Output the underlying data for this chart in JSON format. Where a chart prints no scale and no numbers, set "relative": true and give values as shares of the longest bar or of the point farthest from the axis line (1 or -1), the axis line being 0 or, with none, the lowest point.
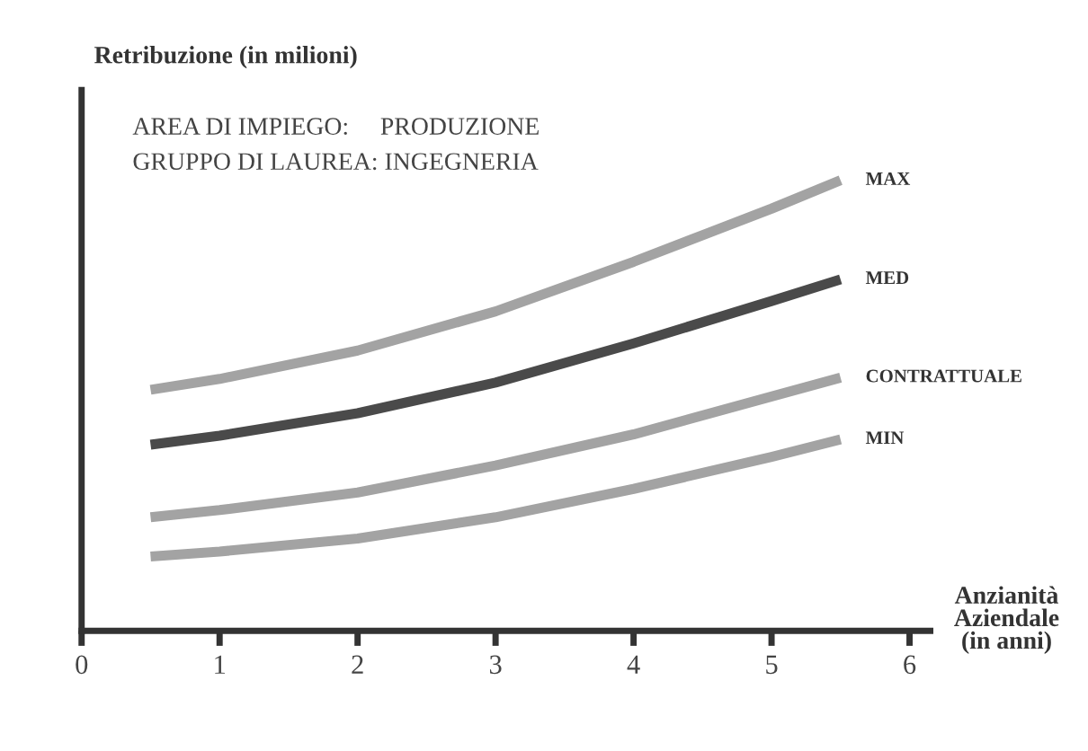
{
  "chart_data": {
    "type": "line",
    "relative": true,
    "ylabel": "Retribuzione (in milioni)",
    "xlabel": "Anzianità\nAziendale\n(in anni)",
    "annotations": [
      "AREA DI IMPIEGO:     PRODUZIONE",
      "GRUPPO DI LAUREA: INGEGNERIA"
    ],
    "x": [
      0.5,
      1,
      2,
      3,
      4,
      5,
      5.5
    ],
    "xlim": [
      0,
      6.15
    ],
    "xticks": [
      0,
      1,
      2,
      3,
      4,
      5,
      6
    ],
    "grid": false,
    "legend": false,
    "marker": "none",
    "line_style": "solid",
    "series": [
      {
        "name": "MAX",
        "color": "#a3a3a3",
        "values": [
          0.535,
          0.559,
          0.622,
          0.709,
          0.819,
          0.937,
          1
        ]
      },
      {
        "name": "MED",
        "color": "#4a4a4a",
        "values": [
          0.413,
          0.433,
          0.483,
          0.551,
          0.638,
          0.732,
          0.78
        ]
      },
      {
        "name": "CONTRATTUALE",
        "color": "#a3a3a3",
        "values": [
          0.252,
          0.268,
          0.307,
          0.367,
          0.436,
          0.52,
          0.562
        ]
      },
      {
        "name": "MIN",
        "color": "#a3a3a3",
        "values": [
          0.165,
          0.176,
          0.205,
          0.252,
          0.315,
          0.386,
          0.425
        ]
      }
    ]
  }
}
